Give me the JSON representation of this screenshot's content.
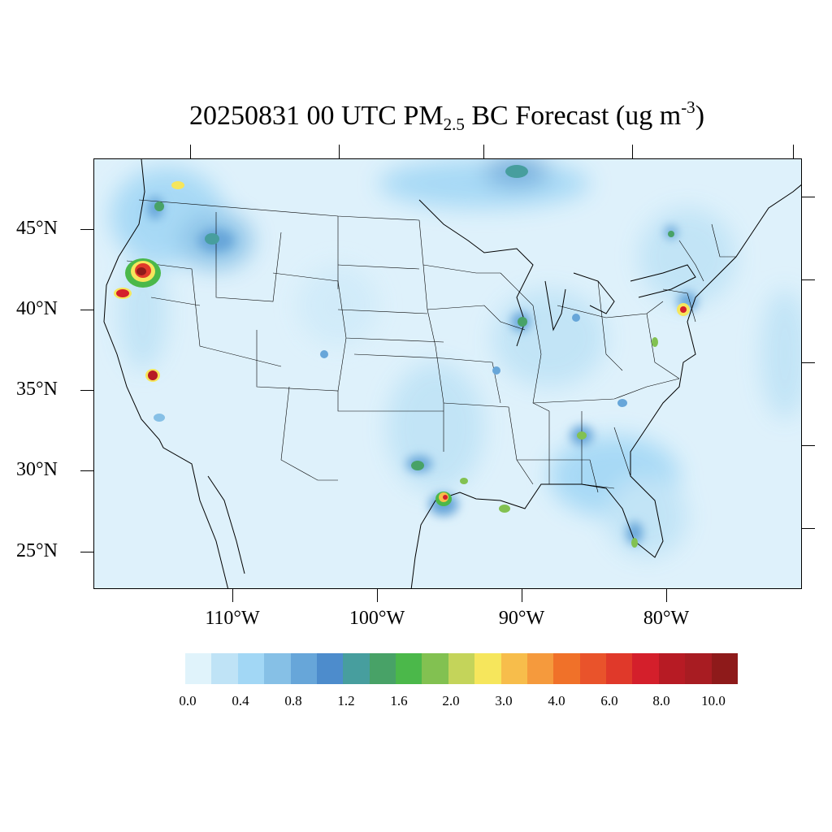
{
  "title": {
    "date_time": "20250831 00 UTC PM",
    "subscript": "2.5",
    "species": " BC Forecast (ug m",
    "superscript": "-3",
    "close": ")"
  },
  "map": {
    "latitude_labels": [
      "45°N",
      "40°N",
      "35°N",
      "30°N",
      "25°N"
    ],
    "longitude_labels": [
      "110°W",
      "100°W",
      "90°W",
      "80°W"
    ],
    "background_color": "#def1fb"
  },
  "colorbar": {
    "colors": [
      "#e0f3fb",
      "#bfe3f6",
      "#a2d7f5",
      "#86c0e6",
      "#67a6d9",
      "#4d8ccc",
      "#479e9e",
      "#48a267",
      "#4bb84a",
      "#82c151",
      "#c4d45a",
      "#f6e65c",
      "#f7bd4b",
      "#f59a3d",
      "#f07129",
      "#e9532b",
      "#e0392a",
      "#d41f2b",
      "#b71b24",
      "#a81c22",
      "#8e1a1a"
    ],
    "labels": [
      "0.0",
      "0.4",
      "0.8",
      "1.2",
      "1.6",
      "2.0",
      "3.0",
      "4.0",
      "6.0",
      "8.0",
      "10.0"
    ]
  }
}
